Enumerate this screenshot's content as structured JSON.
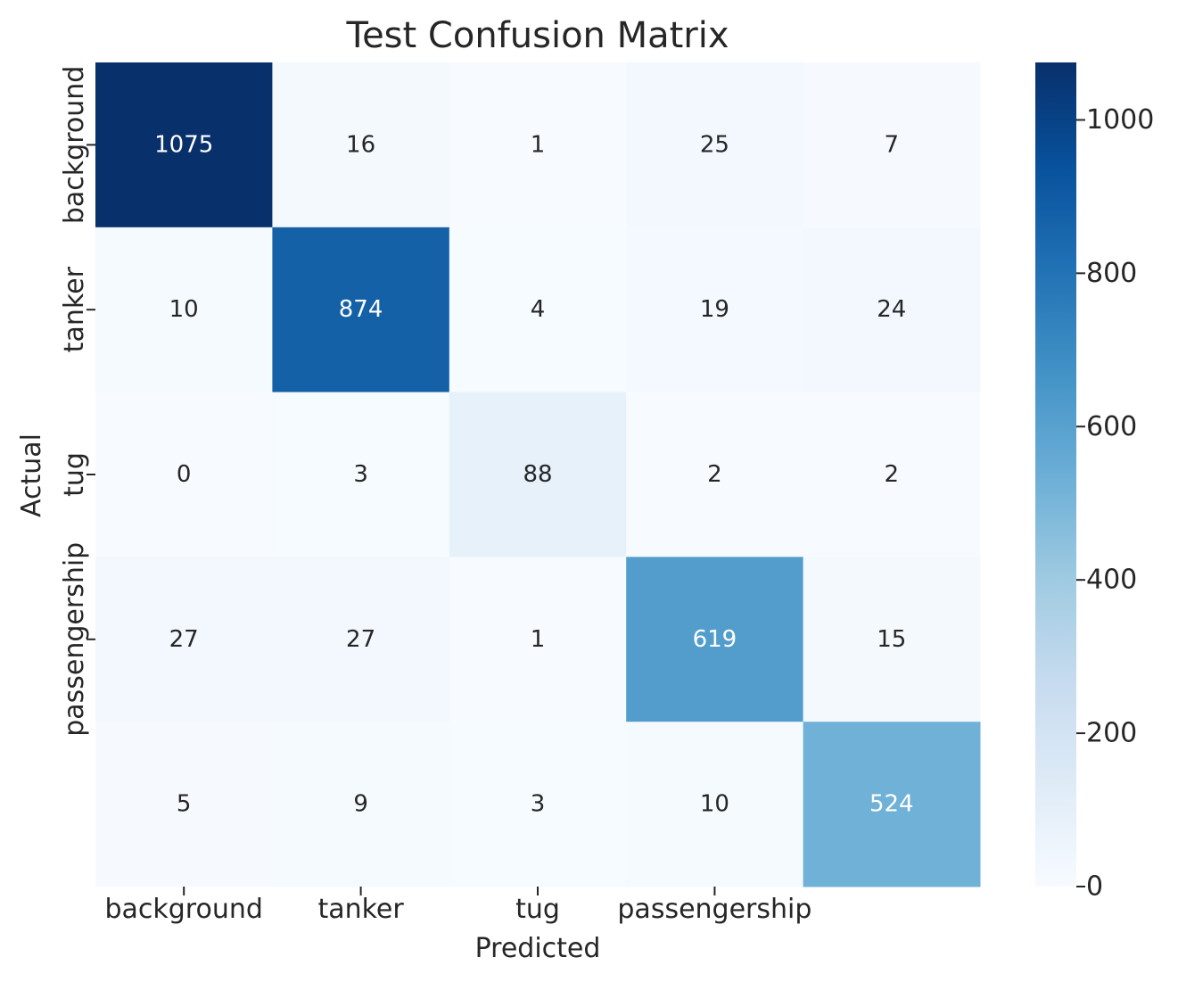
{
  "chart_data": {
    "type": "heatmap",
    "title": "Test Confusion Matrix",
    "xlabel": "Predicted",
    "ylabel": "Actual",
    "x_tick_labels": [
      "background",
      "tanker",
      "tug",
      "passengership",
      ""
    ],
    "y_tick_labels": [
      "background",
      "tanker",
      "tug",
      "passengership",
      ""
    ],
    "matrix": [
      [
        1075,
        16,
        1,
        25,
        7
      ],
      [
        10,
        874,
        4,
        19,
        24
      ],
      [
        0,
        3,
        88,
        2,
        2
      ],
      [
        27,
        27,
        1,
        619,
        15
      ],
      [
        5,
        9,
        3,
        10,
        524
      ]
    ],
    "colorbar": {
      "colormap": "Blues",
      "min": 0,
      "max": 1075,
      "ticks": [
        0,
        200,
        400,
        600,
        800,
        1000
      ]
    },
    "grid": false
  }
}
